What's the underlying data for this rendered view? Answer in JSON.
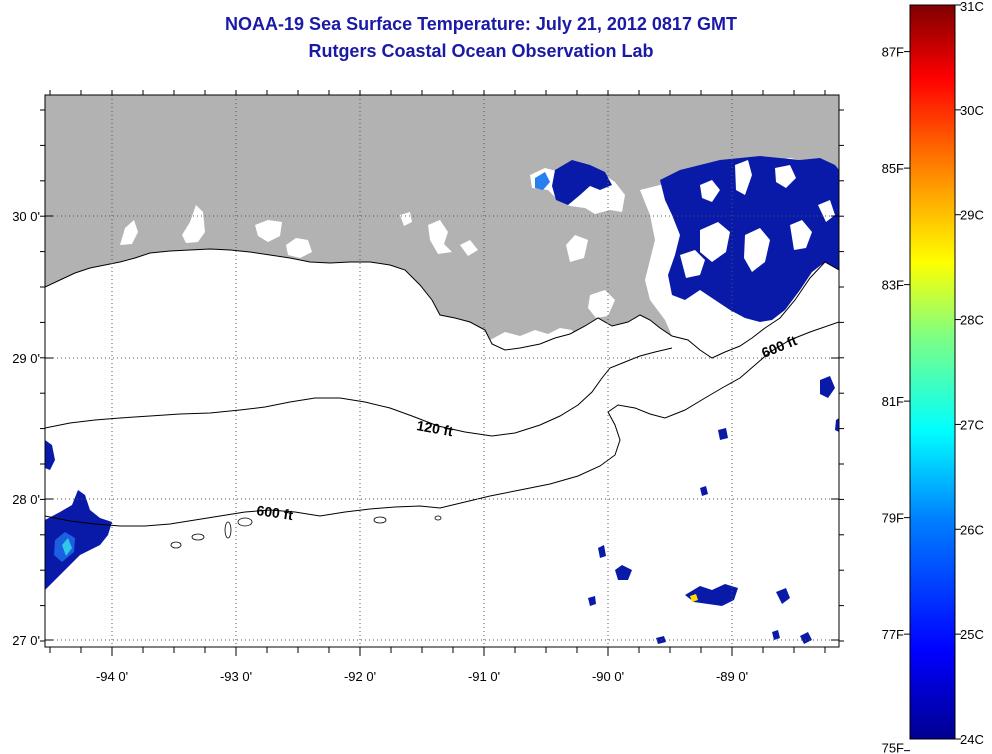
{
  "title": "NOAA-19 Sea Surface Temperature:  July 21, 2012 0817 GMT",
  "subtitle": "Rutgers Coastal Ocean Observation Lab",
  "map": {
    "x_ticks": [
      "-94 0'",
      "-93 0'",
      "-92 0'",
      "-91 0'",
      "-90 0'",
      "-89 0'"
    ],
    "y_ticks": [
      "30 0'",
      "29 0'",
      "28 0'",
      "27 0'"
    ],
    "grid": "dotted",
    "land_color": "#b2b2b2",
    "contour_labels": {
      "c120": "120 ft",
      "c600w": "600 ft",
      "c600e": "600 ft"
    }
  },
  "colorbar": {
    "celsius": [
      "31C",
      "30C",
      "29C",
      "28C",
      "27C",
      "26C",
      "25C",
      "24C"
    ],
    "fahrenheit": [
      "87F",
      "85F",
      "83F",
      "81F",
      "79F",
      "77F",
      "75F"
    ],
    "colors": [
      "#7f0000",
      "#ff0000",
      "#ff8000",
      "#ffff00",
      "#80ff80",
      "#00ffff",
      "#0080ff",
      "#0000ff",
      "#00008f"
    ]
  }
}
